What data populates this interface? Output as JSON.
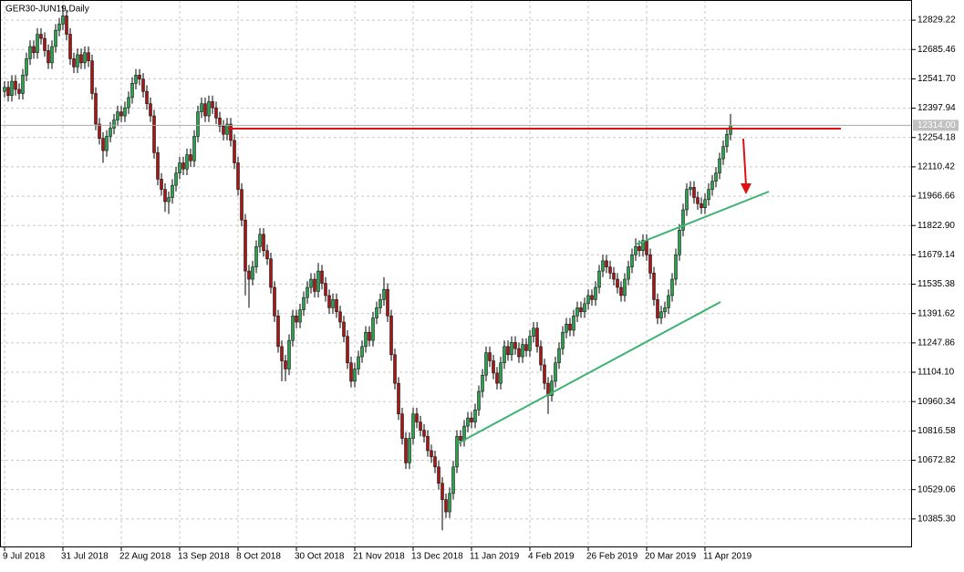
{
  "chart_data": {
    "type": "candlestick",
    "title": "GER30-JUN19,Daily",
    "up_color": "#2e9e4f",
    "down_color": "#a01818",
    "wick_color": "#000000",
    "grid": true,
    "ylim": [
      10246,
      12928
    ],
    "yticks": [
      12829.22,
      12685.46,
      {
        "value": 12541.7,
        "label": "12541.70"
      },
      12397.94,
      12254.18,
      12110.42,
      11966.66,
      {
        "value": 11822.9,
        "label": "11822.90"
      },
      11679.14,
      11535.38,
      11391.62,
      11247.86,
      {
        "value": 11104.1,
        "label": "11104.10"
      },
      10960.34,
      10816.58,
      10672.82,
      10529.06,
      {
        "value": 10385.3,
        "label": "10385.30"
      }
    ],
    "last_price": {
      "value": 12314.0,
      "label": "12314.00"
    },
    "categories": [
      "9 Jul 2018",
      null,
      null,
      null,
      null,
      null,
      null,
      null,
      null,
      null,
      null,
      null,
      null,
      null,
      null,
      null,
      "31 Jul 2018",
      null,
      null,
      null,
      null,
      null,
      null,
      null,
      null,
      null,
      null,
      null,
      null,
      null,
      null,
      null,
      "22 Aug 2018",
      null,
      null,
      null,
      null,
      null,
      null,
      null,
      null,
      null,
      null,
      null,
      null,
      null,
      null,
      null,
      "13 Sep 2018",
      null,
      null,
      null,
      null,
      null,
      null,
      null,
      null,
      null,
      null,
      null,
      null,
      null,
      null,
      null,
      "8 Oct 2018",
      null,
      null,
      null,
      null,
      null,
      null,
      null,
      null,
      null,
      null,
      null,
      null,
      null,
      null,
      null,
      "30 Oct 2018",
      null,
      null,
      null,
      null,
      null,
      null,
      null,
      null,
      null,
      null,
      null,
      null,
      null,
      null,
      null,
      "21 Nov 2018",
      null,
      null,
      null,
      null,
      null,
      null,
      null,
      null,
      null,
      null,
      null,
      null,
      null,
      null,
      null,
      "13 Dec 2018",
      null,
      null,
      null,
      null,
      null,
      null,
      null,
      null,
      null,
      null,
      null,
      null,
      null,
      null,
      null,
      "11 Jan 2019",
      null,
      null,
      null,
      null,
      null,
      null,
      null,
      null,
      null,
      null,
      null,
      null,
      null,
      null,
      null,
      "4 Feb 2019",
      null,
      null,
      null,
      null,
      null,
      null,
      null,
      null,
      null,
      null,
      null,
      null,
      null,
      null,
      null,
      "26 Feb 2019",
      null,
      null,
      null,
      null,
      null,
      null,
      null,
      null,
      null,
      null,
      null,
      null,
      null,
      null,
      null,
      "20 Mar 2019",
      null,
      null,
      null,
      null,
      null,
      null,
      null,
      null,
      null,
      null,
      null,
      null,
      null,
      null,
      null,
      "11 Apr 2019",
      null,
      null,
      null,
      null,
      null,
      null,
      null
    ],
    "candles": [
      [
        12480,
        12530,
        12450,
        12500
      ],
      [
        12500,
        12530,
        12430,
        12460
      ],
      [
        12460,
        12560,
        12430,
        12530
      ],
      [
        12530,
        12560,
        12460,
        12490
      ],
      [
        12490,
        12520,
        12440,
        12470
      ],
      [
        12470,
        12590,
        12440,
        12560
      ],
      [
        12560,
        12670,
        12530,
        12640
      ],
      [
        12640,
        12730,
        12610,
        12700
      ],
      [
        12700,
        12730,
        12640,
        12670
      ],
      [
        12670,
        12790,
        12640,
        12760
      ],
      [
        12760,
        12790,
        12710,
        12740
      ],
      [
        12740,
        12770,
        12650,
        12680
      ],
      [
        12680,
        12710,
        12590,
        12620
      ],
      [
        12620,
        12730,
        12590,
        12700
      ],
      [
        12700,
        12810,
        12670,
        12780
      ],
      [
        12780,
        12840,
        12750,
        12810
      ],
      [
        12810,
        12900,
        12780,
        12850
      ],
      [
        12850,
        12880,
        12730,
        12760
      ],
      [
        12760,
        12790,
        12610,
        12640
      ],
      [
        12640,
        12670,
        12570,
        12600
      ],
      [
        12600,
        12690,
        12570,
        12660
      ],
      [
        12660,
        12690,
        12590,
        12620
      ],
      [
        12620,
        12700,
        12590,
        12670
      ],
      [
        12670,
        12700,
        12600,
        12630
      ],
      [
        12630,
        12660,
        12440,
        12470
      ],
      [
        12470,
        12500,
        12290,
        12320
      ],
      [
        12320,
        12350,
        12220,
        12250
      ],
      [
        12250,
        12280,
        12130,
        12190
      ],
      [
        12190,
        12290,
        12160,
        12260
      ],
      [
        12260,
        12330,
        12230,
        12300
      ],
      [
        12300,
        12370,
        12270,
        12340
      ],
      [
        12340,
        12410,
        12310,
        12380
      ],
      [
        12380,
        12410,
        12330,
        12360
      ],
      [
        12360,
        12430,
        12330,
        12400
      ],
      [
        12400,
        12480,
        12370,
        12450
      ],
      [
        12450,
        12550,
        12420,
        12520
      ],
      [
        12520,
        12590,
        12490,
        12560
      ],
      [
        12560,
        12590,
        12510,
        12540
      ],
      [
        12540,
        12570,
        12450,
        12480
      ],
      [
        12480,
        12510,
        12390,
        12420
      ],
      [
        12420,
        12450,
        12330,
        12360
      ],
      [
        12360,
        12390,
        12150,
        12180
      ],
      [
        12180,
        12210,
        12020,
        12050
      ],
      [
        12050,
        12080,
        11970,
        12000
      ],
      [
        12000,
        12030,
        11890,
        11940
      ],
      [
        11940,
        11990,
        11880,
        11960
      ],
      [
        11960,
        12050,
        11930,
        12020
      ],
      [
        12020,
        12110,
        11990,
        12080
      ],
      [
        12080,
        12160,
        12050,
        12130
      ],
      [
        12130,
        12160,
        12070,
        12100
      ],
      [
        12100,
        12200,
        12070,
        12170
      ],
      [
        12170,
        12200,
        12110,
        12140
      ],
      [
        12140,
        12290,
        12110,
        12260
      ],
      [
        12260,
        12410,
        12230,
        12380
      ],
      [
        12380,
        12450,
        12350,
        12420
      ],
      [
        12420,
        12450,
        12330,
        12360
      ],
      [
        12360,
        12460,
        12330,
        12430
      ],
      [
        12430,
        12460,
        12370,
        12400
      ],
      [
        12400,
        12430,
        12320,
        12350
      ],
      [
        12350,
        12380,
        12280,
        12310
      ],
      [
        12310,
        12340,
        12240,
        12270
      ],
      [
        12270,
        12350,
        12240,
        12320
      ],
      [
        12320,
        12350,
        12210,
        12240
      ],
      [
        12240,
        12270,
        12100,
        12130
      ],
      [
        12130,
        12160,
        11970,
        12000
      ],
      [
        12000,
        12030,
        11820,
        11850
      ],
      [
        11850,
        11880,
        11480,
        11600
      ],
      [
        11600,
        11630,
        11420,
        11560
      ],
      [
        11560,
        11650,
        11530,
        11620
      ],
      [
        11620,
        11750,
        11590,
        11720
      ],
      [
        11720,
        11810,
        11690,
        11780
      ],
      [
        11780,
        11810,
        11670,
        11700
      ],
      [
        11700,
        11730,
        11630,
        11660
      ],
      [
        11660,
        11690,
        11490,
        11520
      ],
      [
        11520,
        11550,
        11350,
        11380
      ],
      [
        11380,
        11410,
        11200,
        11230
      ],
      [
        11230,
        11260,
        11060,
        11160
      ],
      [
        11160,
        11190,
        11060,
        11120
      ],
      [
        11120,
        11290,
        11090,
        11260
      ],
      [
        11260,
        11410,
        11230,
        11380
      ],
      [
        11380,
        11410,
        11320,
        11350
      ],
      [
        11350,
        11440,
        11320,
        11410
      ],
      [
        11410,
        11500,
        11380,
        11470
      ],
      [
        11470,
        11550,
        11440,
        11520
      ],
      [
        11520,
        11590,
        11490,
        11560
      ],
      [
        11560,
        11590,
        11470,
        11500
      ],
      [
        11500,
        11640,
        11470,
        11600
      ],
      [
        11600,
        11630,
        11510,
        11540
      ],
      [
        11540,
        11570,
        11450,
        11480
      ],
      [
        11480,
        11510,
        11390,
        11420
      ],
      [
        11420,
        11490,
        11390,
        11460
      ],
      [
        11460,
        11490,
        11370,
        11400
      ],
      [
        11400,
        11430,
        11320,
        11350
      ],
      [
        11350,
        11380,
        11250,
        11280
      ],
      [
        11280,
        11310,
        11120,
        11150
      ],
      [
        11150,
        11180,
        11030,
        11060
      ],
      [
        11060,
        11150,
        11030,
        11120
      ],
      [
        11120,
        11210,
        11090,
        11180
      ],
      [
        11180,
        11260,
        11150,
        11230
      ],
      [
        11230,
        11330,
        11200,
        11300
      ],
      [
        11300,
        11330,
        11230,
        11260
      ],
      [
        11260,
        11400,
        11230,
        11370
      ],
      [
        11370,
        11450,
        11340,
        11420
      ],
      [
        11420,
        11490,
        11390,
        11460
      ],
      [
        11460,
        11570,
        11430,
        11510
      ],
      [
        11510,
        11540,
        11350,
        11380
      ],
      [
        11380,
        11410,
        11160,
        11190
      ],
      [
        11190,
        11220,
        11020,
        11050
      ],
      [
        11050,
        11080,
        10870,
        10900
      ],
      [
        10900,
        10930,
        10750,
        10780
      ],
      [
        10780,
        10810,
        10630,
        10660
      ],
      [
        10660,
        10810,
        10630,
        10780
      ],
      [
        10780,
        10930,
        10750,
        10900
      ],
      [
        10900,
        10930,
        10830,
        10860
      ],
      [
        10860,
        10890,
        10790,
        10820
      ],
      [
        10820,
        10850,
        10760,
        10790
      ],
      [
        10790,
        10820,
        10690,
        10720
      ],
      [
        10720,
        10750,
        10660,
        10690
      ],
      [
        10690,
        10720,
        10610,
        10640
      ],
      [
        10640,
        10670,
        10530,
        10560
      ],
      [
        10560,
        10590,
        10330,
        10480
      ],
      [
        10480,
        10510,
        10390,
        10420
      ],
      [
        10420,
        10540,
        10390,
        10510
      ],
      [
        10510,
        10670,
        10480,
        10640
      ],
      [
        10640,
        10820,
        10610,
        10790
      ],
      [
        10790,
        10820,
        10740,
        10770
      ],
      [
        10770,
        10870,
        10740,
        10840
      ],
      [
        10840,
        10910,
        10810,
        10880
      ],
      [
        10880,
        10910,
        10830,
        10860
      ],
      [
        10860,
        10950,
        10830,
        10920
      ],
      [
        10920,
        11040,
        10890,
        11010
      ],
      [
        11010,
        11120,
        10980,
        11090
      ],
      [
        11090,
        11230,
        11060,
        11200
      ],
      [
        11200,
        11230,
        11130,
        11160
      ],
      [
        11160,
        11190,
        11070,
        11100
      ],
      [
        11100,
        11130,
        11020,
        11050
      ],
      [
        11050,
        11180,
        11020,
        11150
      ],
      [
        11150,
        11260,
        11120,
        11230
      ],
      [
        11230,
        11260,
        11160,
        11190
      ],
      [
        11190,
        11280,
        11160,
        11250
      ],
      [
        11250,
        11280,
        11190,
        11220
      ],
      [
        11220,
        11250,
        11150,
        11180
      ],
      [
        11180,
        11270,
        11150,
        11240
      ],
      [
        11240,
        11270,
        11180,
        11210
      ],
      [
        11210,
        11310,
        11180,
        11280
      ],
      [
        11280,
        11350,
        11250,
        11320
      ],
      [
        11320,
        11350,
        11200,
        11230
      ],
      [
        11230,
        11260,
        11110,
        11140
      ],
      [
        11140,
        11170,
        11020,
        11050
      ],
      [
        11050,
        11080,
        10900,
        10990
      ],
      [
        10990,
        11090,
        10960,
        11060
      ],
      [
        11060,
        11180,
        11030,
        11150
      ],
      [
        11150,
        11250,
        11120,
        11220
      ],
      [
        11220,
        11330,
        11190,
        11300
      ],
      [
        11300,
        11370,
        11270,
        11340
      ],
      [
        11340,
        11370,
        11280,
        11310
      ],
      [
        11310,
        11410,
        11280,
        11380
      ],
      [
        11380,
        11450,
        11350,
        11420
      ],
      [
        11420,
        11450,
        11370,
        11400
      ],
      [
        11400,
        11470,
        11370,
        11440
      ],
      [
        11440,
        11510,
        11410,
        11480
      ],
      [
        11480,
        11510,
        11430,
        11460
      ],
      [
        11460,
        11550,
        11430,
        11520
      ],
      [
        11520,
        11630,
        11490,
        11600
      ],
      [
        11600,
        11680,
        11570,
        11650
      ],
      [
        11650,
        11680,
        11590,
        11620
      ],
      [
        11620,
        11650,
        11560,
        11590
      ],
      [
        11590,
        11620,
        11530,
        11560
      ],
      [
        11560,
        11590,
        11490,
        11520
      ],
      [
        11520,
        11550,
        11450,
        11480
      ],
      [
        11480,
        11590,
        11450,
        11560
      ],
      [
        11560,
        11650,
        11530,
        11620
      ],
      [
        11620,
        11710,
        11590,
        11680
      ],
      [
        11680,
        11760,
        11650,
        11720
      ],
      [
        11720,
        11750,
        11670,
        11700
      ],
      [
        11700,
        11780,
        11670,
        11750
      ],
      [
        11750,
        11780,
        11650,
        11680
      ],
      [
        11680,
        11710,
        11560,
        11590
      ],
      [
        11590,
        11620,
        11430,
        11460
      ],
      [
        11460,
        11490,
        11340,
        11370
      ],
      [
        11370,
        11430,
        11340,
        11400
      ],
      [
        11400,
        11450,
        11370,
        11420
      ],
      [
        11420,
        11510,
        11390,
        11480
      ],
      [
        11480,
        11590,
        11450,
        11560
      ],
      [
        11560,
        11710,
        11530,
        11680
      ],
      [
        11680,
        11830,
        11650,
        11800
      ],
      [
        11800,
        11930,
        11770,
        11900
      ],
      [
        11900,
        12030,
        11870,
        12000
      ],
      [
        12000,
        12040,
        11970,
        12010
      ],
      [
        12010,
        12040,
        11930,
        11960
      ],
      [
        11960,
        11990,
        11900,
        11930
      ],
      [
        11930,
        11960,
        11880,
        11910
      ],
      [
        11910,
        11980,
        11880,
        11950
      ],
      [
        11950,
        12030,
        11920,
        12000
      ],
      [
        12000,
        12070,
        11970,
        12040
      ],
      [
        12040,
        12110,
        12010,
        12080
      ],
      [
        12080,
        12180,
        12050,
        12150
      ],
      [
        12150,
        12240,
        12120,
        12210
      ],
      [
        12210,
        12300,
        12180,
        12270
      ],
      [
        12270,
        12370,
        12240,
        12314
      ]
    ]
  }
}
